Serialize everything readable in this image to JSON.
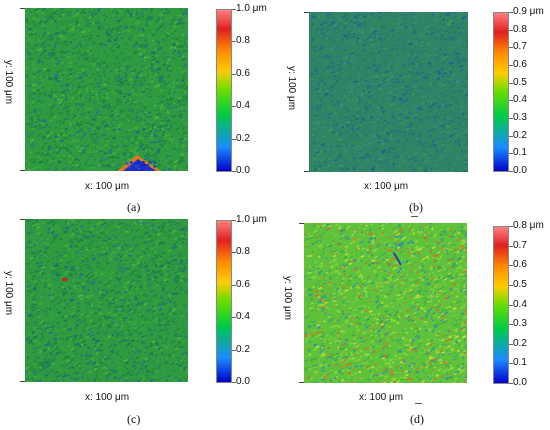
{
  "colors": {
    "scale": [
      "#0000cc",
      "#1a8cff",
      "#00cc44",
      "#66dd00",
      "#ffcc00",
      "#ff8800",
      "#e02020",
      "#ff8080"
    ],
    "base_green": "#2f9a3f",
    "base_teal": "#2f8a6c"
  },
  "panels": [
    {
      "id": "a",
      "caption": "(a)",
      "x_label": "x: 100 μm",
      "y_label": "y: 100 μm",
      "colorbar_labels": [
        "1.0 μm",
        "0.8",
        "0.6",
        "0.4",
        "0.2",
        "0.0"
      ],
      "tone": "green-dark"
    },
    {
      "id": "b",
      "caption": "(b)",
      "x_label": "x: 100 μm",
      "y_label": "y: 100 μm",
      "colorbar_labels": [
        "0.9 μm",
        "0.8",
        "0.7",
        "0.6",
        "0.5",
        "0.4",
        "0.3",
        "0.2",
        "0.1",
        "0.0"
      ],
      "tone": "teal"
    },
    {
      "id": "c",
      "caption": "(c)",
      "x_label": "x: 100 μm",
      "y_label": "y: 100 μm",
      "colorbar_labels": [
        "1.0 μm",
        "0.8",
        "0.6",
        "0.4",
        "0.2",
        "0.0"
      ],
      "tone": "green-dark"
    },
    {
      "id": "d",
      "caption": "(d)",
      "x_label": "x: 100 μm",
      "y_label": "y: 100 μm",
      "colorbar_labels": [
        "0.8 μm",
        "0.7",
        "0.6",
        "0.5",
        "0.4",
        "0.3",
        "0.2",
        "0.1",
        "0.0"
      ],
      "tone": "light-green"
    }
  ]
}
